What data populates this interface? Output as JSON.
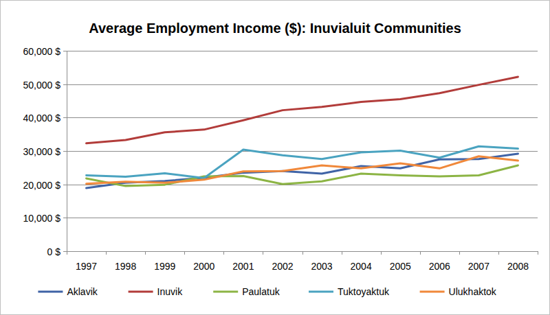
{
  "chart_data": {
    "type": "line",
    "title": "Average Employment Income ($): Inuvialuit Communities",
    "categories": [
      "1997",
      "1998",
      "1999",
      "2000",
      "2001",
      "2002",
      "2003",
      "2004",
      "2005",
      "2006",
      "2007",
      "2008"
    ],
    "series": [
      {
        "name": "Aklavik",
        "color": "#3f63a6",
        "values": [
          18900,
          20500,
          21000,
          22000,
          23500,
          24000,
          23200,
          25500,
          24800,
          27500,
          27600,
          29200
        ]
      },
      {
        "name": "Inuvik",
        "color": "#b23c3a",
        "values": [
          32300,
          33300,
          35600,
          36400,
          39200,
          42200,
          43200,
          44700,
          45500,
          47300,
          49800,
          52200
        ]
      },
      {
        "name": "Paulatuk",
        "color": "#8cb444",
        "values": [
          21800,
          19500,
          19900,
          22400,
          22500,
          20100,
          20900,
          23200,
          22700,
          22400,
          22700,
          25700
        ]
      },
      {
        "name": "Tuktoyaktuk",
        "color": "#4aa3c0",
        "values": [
          22700,
          22300,
          23300,
          21900,
          30400,
          28700,
          27600,
          29600,
          30100,
          28000,
          31400,
          30700
        ]
      },
      {
        "name": "Ulukhaktok",
        "color": "#f0883a",
        "values": [
          20200,
          20800,
          20500,
          21400,
          23900,
          24000,
          25700,
          24800,
          26300,
          24800,
          28400,
          27100
        ]
      }
    ],
    "ylim": [
      0,
      60000
    ],
    "yticks": [
      {
        "value": 0,
        "label": "0 $"
      },
      {
        "value": 10000,
        "label": "10,000 $"
      },
      {
        "value": 20000,
        "label": "20,000 $"
      },
      {
        "value": 30000,
        "label": "30,000 $"
      },
      {
        "value": 40000,
        "label": "40,000 $"
      },
      {
        "value": 50000,
        "label": "50,000 $"
      },
      {
        "value": 60000,
        "label": "60,000 $"
      }
    ],
    "grid": true,
    "legend": "bottom"
  }
}
